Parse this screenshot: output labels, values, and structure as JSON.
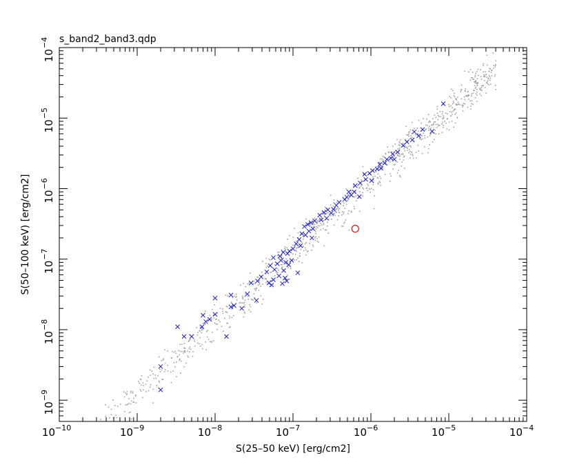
{
  "chart_data": {
    "type": "scatter",
    "title": "s_band2_band3.qdp",
    "xlabel": "S(25–50 keV) [erg/cm2]",
    "ylabel": "S(50–100 keV) [erg/cm2]",
    "xscale": "log",
    "yscale": "log",
    "xlim": [
      1e-10,
      0.0001
    ],
    "ylim": [
      5e-10,
      0.0001
    ],
    "x_ticks": [
      {
        "base": "10",
        "exp": "−10",
        "value": 1e-10
      },
      {
        "base": "10",
        "exp": "−9",
        "value": 1e-09
      },
      {
        "base": "10",
        "exp": "−8",
        "value": 1e-08
      },
      {
        "base": "10",
        "exp": "−7",
        "value": 1e-07
      },
      {
        "base": "10",
        "exp": "−6",
        "value": 1e-06
      },
      {
        "base": "10",
        "exp": "−5",
        "value": 1e-05
      },
      {
        "base": "10",
        "exp": "−4",
        "value": 0.0001
      }
    ],
    "y_ticks": [
      {
        "base": "10",
        "exp": "−9",
        "value": 1e-09
      },
      {
        "base": "10",
        "exp": "−8",
        "value": 1e-08
      },
      {
        "base": "10",
        "exp": "−7",
        "value": 1e-07
      },
      {
        "base": "10",
        "exp": "−6",
        "value": 1e-06
      },
      {
        "base": "10",
        "exp": "−5",
        "value": 1e-05
      },
      {
        "base": "10",
        "exp": "−4",
        "value": 0.0001
      }
    ],
    "grid": false,
    "legend": "none",
    "series": [
      {
        "marker": "dot",
        "color": "#a0a0a0",
        "approx_count": 1000,
        "distribution": "log-linear cloud around y ≈ 1.3·x, log scatter ≈ 0.2 dex, x range 3e-10 to 5e-5"
      },
      {
        "marker": "x",
        "color": "#1a1ad0",
        "points": [
          [
            8.5e-06,
            1.6e-05
          ],
          [
            6.1e-06,
            6.5e-06
          ],
          [
            4.6e-06,
            6.9e-06
          ],
          [
            3.6e-06,
            6.4e-06
          ],
          [
            4.1e-06,
            5.6e-06
          ],
          [
            3.4e-06,
            4.9e-06
          ],
          [
            2.9e-06,
            4.6e-06
          ],
          [
            2.6e-06,
            4.1e-06
          ],
          [
            2.2e-06,
            3.3e-06
          ],
          [
            1.9e-06,
            3.1e-06
          ],
          [
            1.8e-06,
            2.7e-06
          ],
          [
            2e-06,
            2.6e-06
          ],
          [
            1.6e-06,
            2.6e-06
          ],
          [
            1.5e-06,
            2.3e-06
          ],
          [
            1.3e-06,
            2.2e-06
          ],
          [
            1.35e-06,
            1.95e-06
          ],
          [
            1.2e-06,
            1.9e-06
          ],
          [
            1.05e-06,
            1.8e-06
          ],
          [
            9.6e-07,
            1.65e-06
          ],
          [
            8.3e-07,
            1.6e-06
          ],
          [
            1.02e-06,
            1.3e-06
          ],
          [
            8.6e-07,
            1.35e-06
          ],
          [
            7.3e-07,
            1.2e-06
          ],
          [
            6.3e-07,
            1.1e-06
          ],
          [
            6.1e-07,
            9e-07
          ],
          [
            5.2e-07,
            9e-07
          ],
          [
            5.6e-07,
            8.1e-07
          ],
          [
            4.9e-07,
            7.6e-07
          ],
          [
            7.1e-07,
            7.7e-07
          ],
          [
            4.6e-07,
            7e-07
          ],
          [
            3.9e-07,
            6.4e-07
          ],
          [
            3.6e-07,
            5.8e-07
          ],
          [
            3.3e-07,
            5.1e-07
          ],
          [
            2.8e-07,
            5e-07
          ],
          [
            2.5e-07,
            4.6e-07
          ],
          [
            3.1e-07,
            4.5e-07
          ],
          [
            2.2e-07,
            4.2e-07
          ],
          [
            2.7e-07,
            3.8e-07
          ],
          [
            2.3e-07,
            3.6e-07
          ],
          [
            1.9e-07,
            3.5e-07
          ],
          [
            1.7e-07,
            3.3e-07
          ],
          [
            1.55e-07,
            3.1e-07
          ],
          [
            1.4e-07,
            2.9e-07
          ],
          [
            1.8e-07,
            2.7e-07
          ],
          [
            1.6e-07,
            2.5e-07
          ],
          [
            1.3e-07,
            2.3e-07
          ],
          [
            1.45e-07,
            2.2e-07
          ],
          [
            1.75e-07,
            2e-07
          ],
          [
            1.2e-07,
            1.9e-07
          ],
          [
            1.1e-07,
            1.65e-07
          ],
          [
            1.25e-07,
            1.55e-07
          ],
          [
            1e-07,
            1.4e-07
          ],
          [
            9e-08,
            1.3e-07
          ],
          [
            8.5e-08,
            1.2e-07
          ],
          [
            7.5e-08,
            1.25e-07
          ],
          [
            6.8e-08,
            1.1e-07
          ],
          [
            5.6e-08,
            1.05e-07
          ],
          [
            7e-08,
            9.6e-08
          ],
          [
            9.6e-08,
            9.6e-08
          ],
          [
            8.1e-08,
            9e-08
          ],
          [
            6.3e-08,
            8.6e-08
          ],
          [
            5.1e-08,
            8.1e-08
          ],
          [
            8.8e-08,
            8.3e-08
          ],
          [
            5.8e-08,
            7.1e-08
          ],
          [
            7.6e-08,
            6.9e-08
          ],
          [
            1.15e-07,
            6.4e-08
          ],
          [
            4.6e-08,
            6.6e-08
          ],
          [
            6.6e-08,
            5.8e-08
          ],
          [
            3.9e-08,
            5.6e-08
          ],
          [
            7.9e-08,
            5.4e-08
          ],
          [
            5.6e-08,
            5.1e-08
          ],
          [
            8.3e-08,
            4.9e-08
          ],
          [
            3.5e-08,
            4.9e-08
          ],
          [
            4.9e-08,
            4.6e-08
          ],
          [
            2.9e-08,
            4.6e-08
          ],
          [
            5.3e-08,
            4.3e-08
          ],
          [
            7.3e-08,
            4.5e-08
          ],
          [
            2.6e-08,
            3.2e-08
          ],
          [
            1.6e-08,
            3.1e-08
          ],
          [
            1e-08,
            2.8e-08
          ],
          [
            3.4e-08,
            2.6e-08
          ],
          [
            1.75e-08,
            2.2e-08
          ],
          [
            1.6e-08,
            2.1e-08
          ],
          [
            2.2e-08,
            2e-08
          ],
          [
            1e-08,
            1.65e-08
          ],
          [
            7e-09,
            1.6e-08
          ],
          [
            8.5e-09,
            1.4e-08
          ],
          [
            7.6e-09,
            1.3e-08
          ],
          [
            6.8e-09,
            1.1e-08
          ],
          [
            3.3e-09,
            1.1e-08
          ],
          [
            4e-09,
            8e-09
          ],
          [
            5e-09,
            8e-09
          ],
          [
            1.4e-08,
            8e-09
          ],
          [
            2e-09,
            3e-09
          ],
          [
            2e-09,
            1.4e-09
          ]
        ]
      },
      {
        "marker": "circle",
        "color": "#e01010",
        "points": [
          [
            6.3e-07,
            2.7e-07
          ]
        ]
      }
    ]
  }
}
